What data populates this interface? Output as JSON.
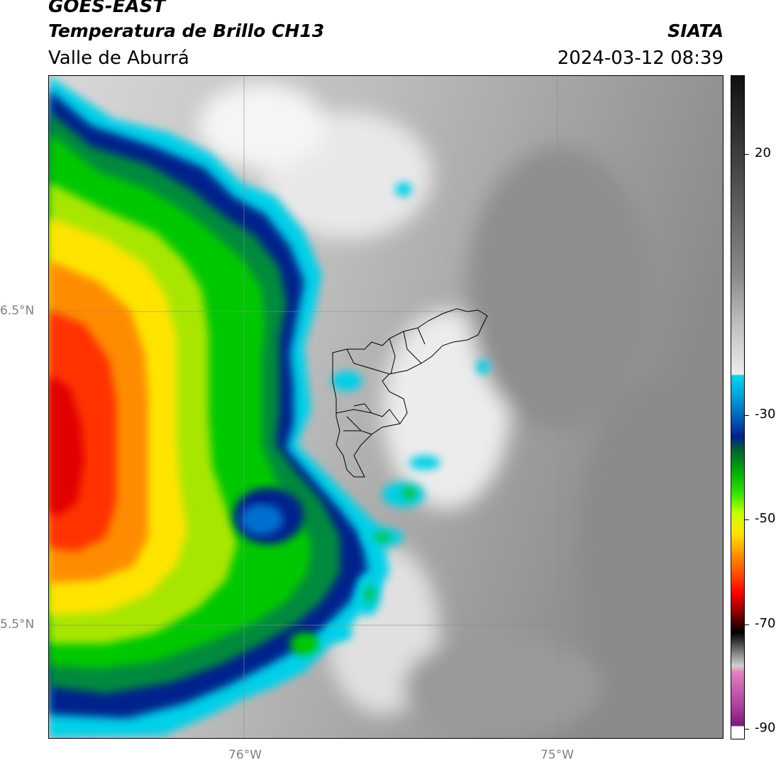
{
  "header": {
    "title": "GOES-EAST",
    "subtitle": "Temperatura de Brillo CH13",
    "region": "Valle de Aburrá",
    "organization": "SIATA",
    "timestamp": "2024-03-12 08:39"
  },
  "map": {
    "projection": "lat-lon",
    "gridlines": true,
    "lat_labels": [
      "6.5°N",
      "5.5°N"
    ],
    "lon_labels": [
      "76°W",
      "75°W"
    ],
    "background_colormap": "grayscale (warm surfaces)",
    "overlay": "municipal boundaries of Valle de Aburrá"
  },
  "colorbar": {
    "ticks": [
      "20",
      "-30",
      "-50",
      "-70",
      "-90"
    ],
    "tick_values": [
      20,
      -30,
      -50,
      -70,
      -90
    ],
    "range": [
      -92,
      35
    ],
    "colors": {
      "cold_white": "#ffffff",
      "purple": "#8b1a8b",
      "pink": "#e080c0",
      "gray_band": "#a0a0a0",
      "black": "#000000",
      "dark_red": "#8b0000",
      "red": "#ff0000",
      "orange": "#ff8c00",
      "yellow": "#ffff00",
      "green": "#00c800",
      "dark_green": "#006432",
      "navy": "#00208c",
      "blue": "#0070d0",
      "cyan": "#00d0e8",
      "white": "#f4f4f4",
      "mid_gray": "#808080",
      "dark": "#101010"
    }
  }
}
